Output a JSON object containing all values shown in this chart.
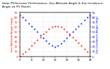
{
  "title": "Solar PV/Inverter Performance  Sun Altitude Angle & Sun Incidence Angle on PV Panels",
  "ylabel_left": "Sun Altitude Angle (deg)",
  "ylabel_right": "Sun Incidence Angle (deg)",
  "ylim_left": [
    0,
    90
  ],
  "ylim_right": [
    0,
    90
  ],
  "xlim": [
    6,
    18
  ],
  "background_color": "#ffffff",
  "grid_color": "#c0c0c0",
  "time_hours": [
    6,
    6.5,
    7,
    7.5,
    8,
    8.5,
    9,
    9.5,
    10,
    10.5,
    11,
    11.5,
    12,
    12.5,
    13,
    13.5,
    14,
    14.5,
    15,
    15.5,
    16,
    16.5,
    17,
    17.5,
    18
  ],
  "altitude_values": [
    0,
    5,
    10,
    16,
    22,
    28,
    34,
    40,
    46,
    51,
    56,
    60,
    62,
    62,
    60,
    56,
    51,
    46,
    40,
    34,
    28,
    22,
    16,
    10,
    0
  ],
  "incidence_values": [
    85,
    80,
    74,
    68,
    62,
    56,
    50,
    44,
    38,
    32,
    27,
    22,
    20,
    22,
    27,
    32,
    38,
    44,
    50,
    56,
    62,
    68,
    74,
    80,
    85
  ],
  "altitude_color": "#ff0000",
  "incidence_color": "#0000ff",
  "title_fontsize": 3.2,
  "axis_label_fontsize": 3.0,
  "tick_fontsize": 2.8,
  "marker_size": 1.0,
  "xtick_vals": [
    6,
    8,
    10,
    12,
    14,
    16,
    18
  ],
  "ytick_vals_left": [
    0,
    10,
    20,
    30,
    40,
    50,
    60,
    70,
    80,
    90
  ],
  "ytick_vals_right": [
    0,
    10,
    20,
    30,
    40,
    50,
    60,
    70,
    80,
    90
  ]
}
